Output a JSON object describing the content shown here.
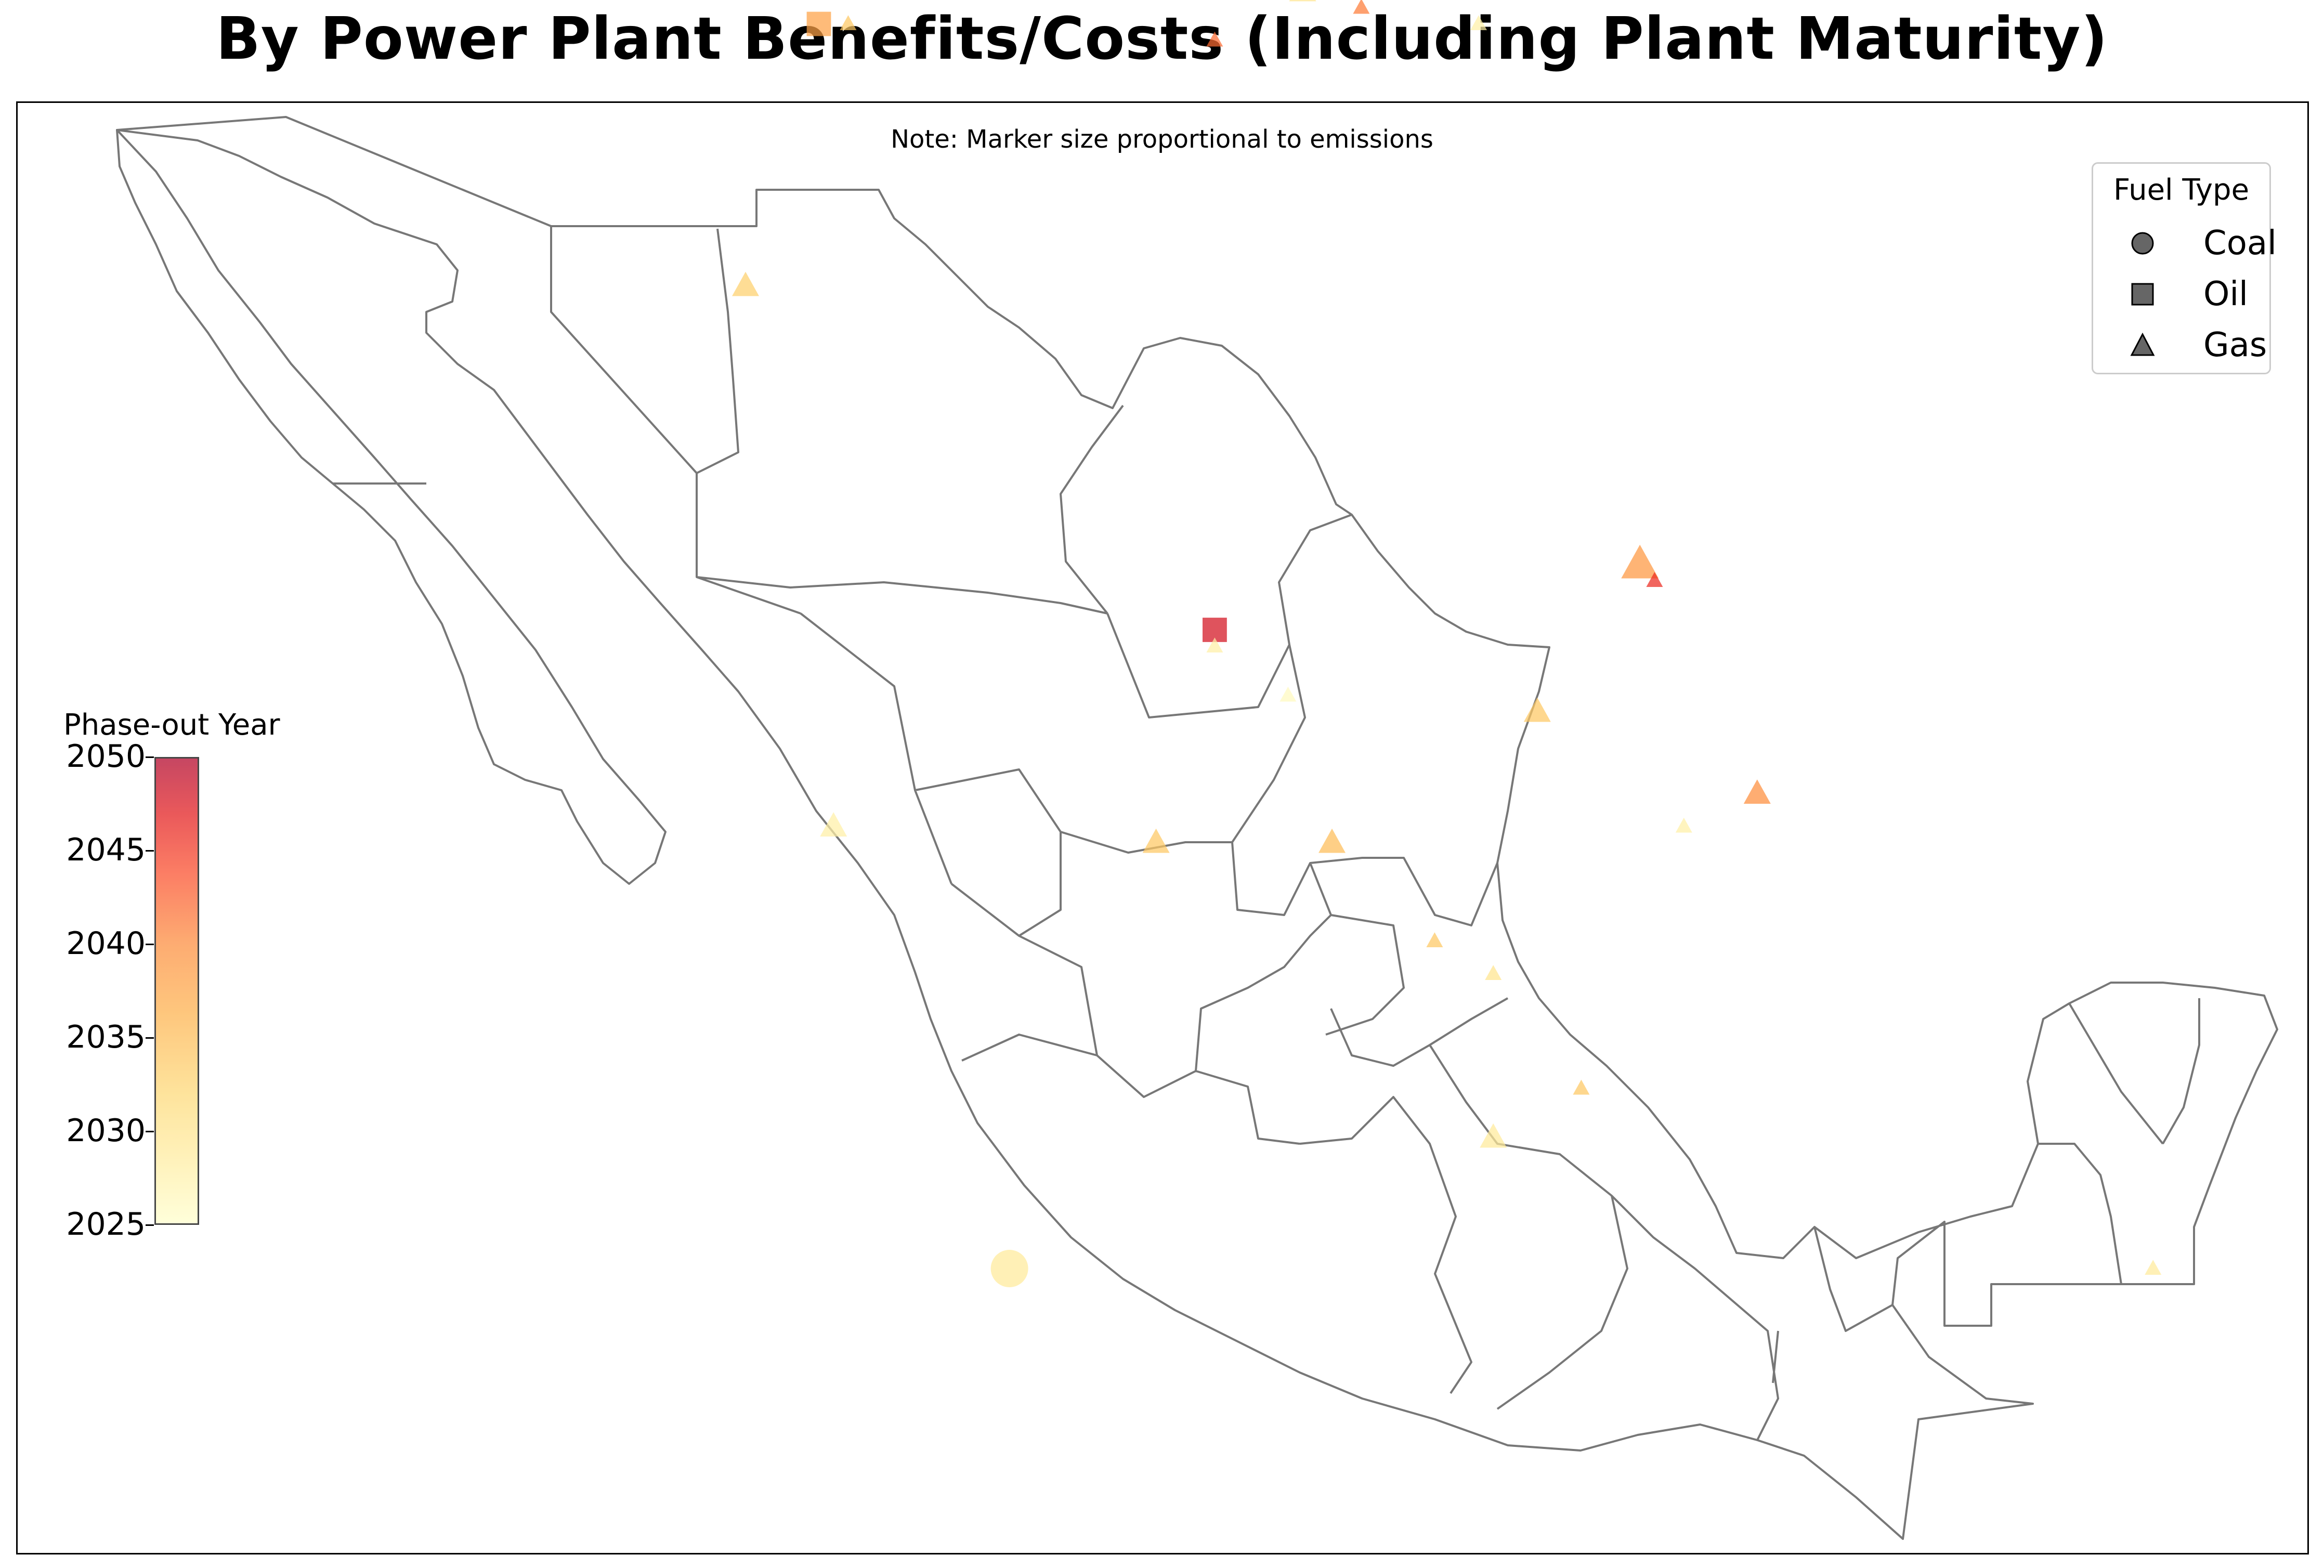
{
  "title": "By Power Plant Benefits/Costs (Including Plant Maturity)",
  "note": "Note: Marker size proportional to emissions",
  "legend": {
    "title": "Fuel Type",
    "items": [
      {
        "label": "Coal",
        "marker": "circle"
      },
      {
        "label": "Oil",
        "marker": "square"
      },
      {
        "label": "Gas",
        "marker": "triangle"
      }
    ]
  },
  "colorbar": {
    "title": "Phase-out Year",
    "ticks": [
      "2050",
      "2045",
      "2040",
      "2035",
      "2030",
      "2025"
    ],
    "range": [
      2025,
      2050
    ],
    "colormap": "YlOrRd"
  },
  "colors": {
    "border": "#777777",
    "legend_marker": "#666666"
  },
  "chart_data": {
    "type": "scatter",
    "title": "By Power Plant Benefits/Costs (Including Plant Maturity)",
    "color_encoding": "Phase-out Year",
    "size_encoding": "emissions (relative)",
    "plants": [
      {
        "fuel": "Gas",
        "lon": -114.8,
        "lat": 32.6,
        "year": 2036,
        "size": 3
      },
      {
        "fuel": "Gas",
        "lon": -114.5,
        "lat": 32.6,
        "year": 2031,
        "size": 2
      },
      {
        "fuel": "Gas",
        "lon": -116.6,
        "lat": 32.1,
        "year": 2029,
        "size": 1
      },
      {
        "fuel": "Gas",
        "lon": -113.8,
        "lat": 32.5,
        "year": 2029,
        "size": 1
      },
      {
        "fuel": "Gas",
        "lon": -110.9,
        "lat": 31.3,
        "year": 2034,
        "size": 2
      },
      {
        "fuel": "Gas",
        "lon": -110.9,
        "lat": 30.6,
        "year": 2033,
        "size": 1
      },
      {
        "fuel": "Gas",
        "lon": -114.0,
        "lat": 30.3,
        "year": 2032,
        "size": 1
      },
      {
        "fuel": "Gas",
        "lon": -111.8,
        "lat": 29.3,
        "year": 2035,
        "size": 1
      },
      {
        "fuel": "Gas",
        "lon": -111.8,
        "lat": 27.9,
        "year": 2031,
        "size": 2
      },
      {
        "fuel": "Gas",
        "lon": -109.5,
        "lat": 27.0,
        "year": 2031,
        "size": 2
      },
      {
        "fuel": "Gas",
        "lon": -110.3,
        "lat": 24.1,
        "year": 2030,
        "size": 1
      },
      {
        "fuel": "Gas",
        "lon": -106.5,
        "lat": 31.6,
        "year": 2036,
        "size": 2
      },
      {
        "fuel": "Gas",
        "lon": -106.5,
        "lat": 31.5,
        "year": 2045,
        "size": 1
      },
      {
        "fuel": "Gas",
        "lon": -107.2,
        "lat": 28.9,
        "year": 2033,
        "size": 1
      },
      {
        "fuel": "Gas",
        "lon": -106.6,
        "lat": 28.9,
        "year": 2035,
        "size": 2
      },
      {
        "fuel": "Oil",
        "lon": -106.0,
        "lat": 28.7,
        "year": 2031,
        "size": 2
      },
      {
        "fuel": "Oil",
        "lon": -103.5,
        "lat": 25.6,
        "year": 2038,
        "size": 2
      },
      {
        "fuel": "Gas",
        "lon": -103.3,
        "lat": 25.6,
        "year": 2034,
        "size": 1
      },
      {
        "fuel": "Gas",
        "lon": -104.0,
        "lat": 24.0,
        "year": 2033,
        "size": 2
      },
      {
        "fuel": "Gas",
        "lon": -100.4,
        "lat": 25.8,
        "year": 2036,
        "size": 1
      },
      {
        "fuel": "Gas",
        "lon": -100.2,
        "lat": 25.8,
        "year": 2030,
        "size": 2
      },
      {
        "fuel": "Gas",
        "lon": -99.8,
        "lat": 25.7,
        "year": 2041,
        "size": 1
      },
      {
        "fuel": "Gas",
        "lon": -100.8,
        "lat": 25.5,
        "year": 2042,
        "size": 1
      },
      {
        "fuel": "Gas",
        "lon": -99.0,
        "lat": 25.6,
        "year": 2028,
        "size": 1
      },
      {
        "fuel": "Gas",
        "lon": -97.6,
        "lat": 25.9,
        "year": 2033,
        "size": 1
      },
      {
        "fuel": "Gas",
        "lon": -97.9,
        "lat": 22.3,
        "year": 2039,
        "size": 3
      },
      {
        "fuel": "Gas",
        "lon": -97.8,
        "lat": 22.2,
        "year": 2046,
        "size": 1
      },
      {
        "fuel": "Oil",
        "lon": -100.8,
        "lat": 21.9,
        "year": 2048,
        "size": 2
      },
      {
        "fuel": "Gas",
        "lon": -100.8,
        "lat": 21.8,
        "year": 2028,
        "size": 1
      },
      {
        "fuel": "Gas",
        "lon": -100.3,
        "lat": 21.5,
        "year": 2026,
        "size": 1
      },
      {
        "fuel": "Gas",
        "lon": -98.6,
        "lat": 21.4,
        "year": 2034,
        "size": 2
      },
      {
        "fuel": "Gas",
        "lon": -97.1,
        "lat": 20.9,
        "year": 2040,
        "size": 2
      },
      {
        "fuel": "Gas",
        "lon": -97.6,
        "lat": 20.7,
        "year": 2028,
        "size": 1
      },
      {
        "fuel": "Gas",
        "lon": -103.4,
        "lat": 20.7,
        "year": 2028,
        "size": 2
      },
      {
        "fuel": "Gas",
        "lon": -101.2,
        "lat": 20.6,
        "year": 2034,
        "size": 2
      },
      {
        "fuel": "Gas",
        "lon": -100.0,
        "lat": 20.6,
        "year": 2035,
        "size": 2
      },
      {
        "fuel": "Gas",
        "lon": -99.3,
        "lat": 20.0,
        "year": 2034,
        "size": 1
      },
      {
        "fuel": "Gas",
        "lon": -98.9,
        "lat": 19.8,
        "year": 2030,
        "size": 1
      },
      {
        "fuel": "Gas",
        "lon": -98.3,
        "lat": 19.1,
        "year": 2034,
        "size": 1
      },
      {
        "fuel": "Gas",
        "lon": -98.9,
        "lat": 18.8,
        "year": 2029,
        "size": 2
      },
      {
        "fuel": "Coal",
        "lon": -102.2,
        "lat": 18.0,
        "year": 2029,
        "size": 3
      },
      {
        "fuel": "Gas",
        "lon": -94.4,
        "lat": 18.0,
        "year": 2029,
        "size": 1
      },
      {
        "fuel": "Gas",
        "lon": -92.9,
        "lat": 17.9,
        "year": 2032,
        "size": 1
      },
      {
        "fuel": "Oil",
        "lon": -91.8,
        "lat": 17.9,
        "year": 2032,
        "size": 2
      },
      {
        "fuel": "Gas",
        "lon": -89.6,
        "lat": 20.9,
        "year": 2035,
        "size": 2
      }
    ]
  }
}
